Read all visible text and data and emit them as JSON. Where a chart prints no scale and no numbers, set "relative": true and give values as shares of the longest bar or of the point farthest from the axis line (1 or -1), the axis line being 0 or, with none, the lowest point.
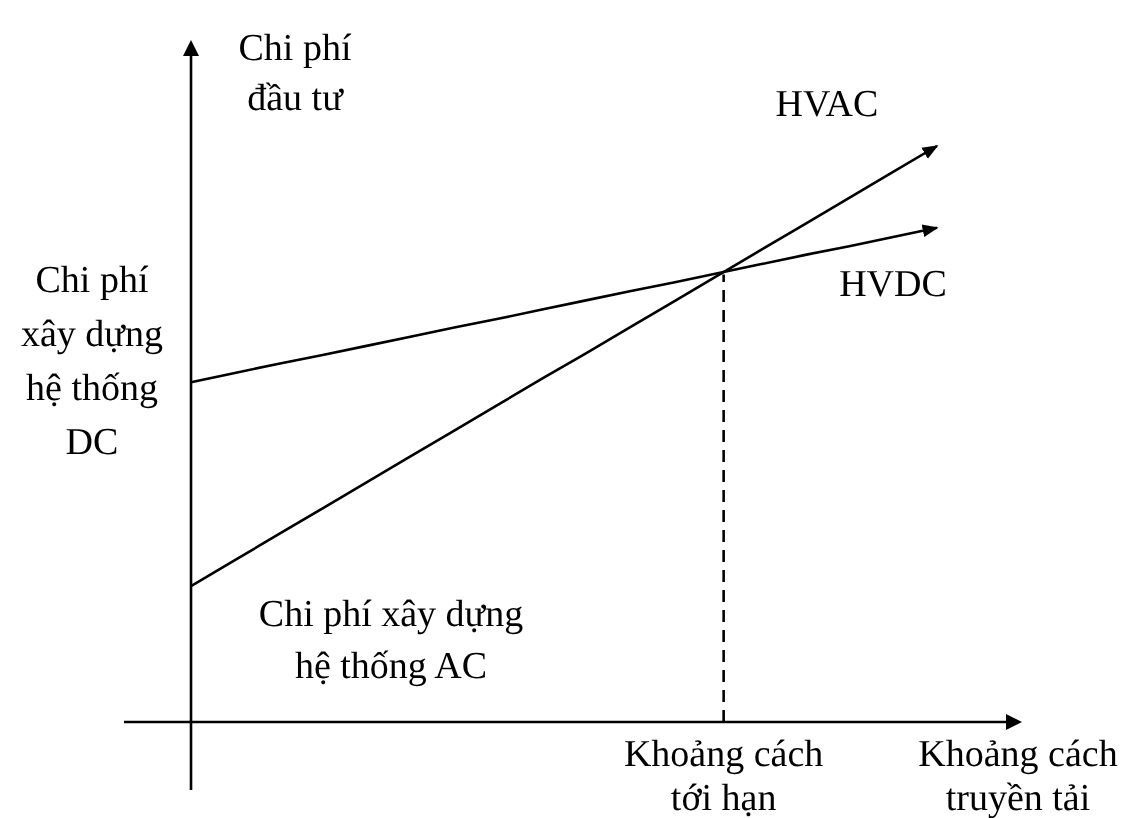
{
  "chart_data": {
    "type": "line",
    "relative": true,
    "xlabel": "Khoảng cách truyền tải",
    "ylabel": "Chi phí đầu tư",
    "line_style": "solid",
    "categories": [
      null,
      null,
      null,
      null,
      null,
      null,
      null,
      null,
      null,
      null,
      null,
      null,
      null,
      null,
      null,
      null,
      null,
      null
    ],
    "series": [
      {
        "name": "HVAC",
        "color": "#000000",
        "values": [
          0.236,
          0.281,
          0.326,
          0.371,
          0.416,
          0.461,
          0.506,
          0.551,
          0.596,
          0.64,
          0.685,
          0.73,
          0.775,
          0.82,
          0.865,
          0.91,
          0.955,
          1
        ]
      },
      {
        "name": "HVDC",
        "color": "#000000",
        "values": [
          0.59,
          0.606,
          0.622,
          0.637,
          0.653,
          0.669,
          0.685,
          0.7,
          0.716,
          0.732,
          0.748,
          0.763,
          0.779,
          0.795,
          0.811,
          0.826,
          0.842,
          0.858
        ]
      }
    ],
    "annotations": [
      "Chi phí xây dựng hệ thống DC",
      "Chi phí xây dựng hệ thống AC",
      {
        "text": "Khoảng cách tới hạn",
        "y": 0.777
      }
    ]
  }
}
